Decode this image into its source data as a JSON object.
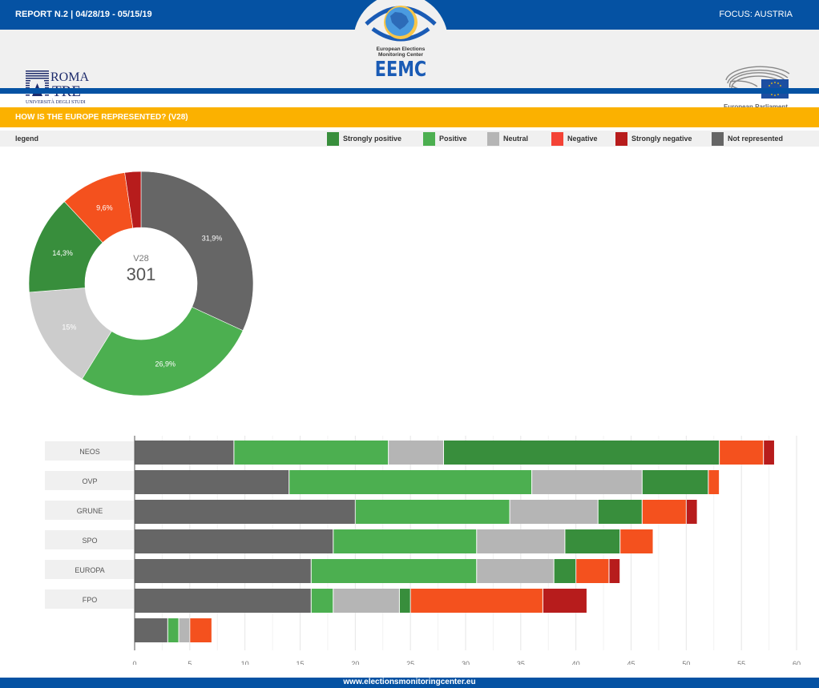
{
  "header": {
    "report": "REPORT N.2 | 04/28/19 - 05/15/19",
    "focus": "FOCUS: AUSTRIA",
    "logos": {
      "left": {
        "line1": "ROMA",
        "line2": "TRE",
        "line3": "UNIVERSITÀ DEGLI STUDI"
      },
      "center": {
        "line1": "European Elections",
        "line2": "Monitoring Center",
        "acronym": "EEMC"
      },
      "right": {
        "caption": "European Parliament"
      }
    }
  },
  "section": {
    "title": "HOW IS THE EUROPE REPRESENTED? (V28)"
  },
  "legend": {
    "title": "legend",
    "items": [
      {
        "label": "Strongly positive",
        "color": "#388e3c"
      },
      {
        "label": "Positive",
        "color": "#4caf50"
      },
      {
        "label": "Neutral",
        "color": "#b5b5b5"
      },
      {
        "label": "Negative",
        "color": "#f44336"
      },
      {
        "label": "Strongly negative",
        "color": "#b71c1c"
      },
      {
        "label": "Not represented",
        "color": "#666666"
      }
    ]
  },
  "chart_data": [
    {
      "type": "pie",
      "variant": "donut",
      "title": "V28",
      "center_label": "V28",
      "center_value": "301",
      "slices": [
        {
          "label": "Not represented",
          "value": 96,
          "percent_label": "31,9%",
          "color": "#666666"
        },
        {
          "label": "Positive",
          "value": 81,
          "percent_label": "26,9%",
          "color": "#4caf50"
        },
        {
          "label": "Neutral",
          "value": 45,
          "percent_label": "15%",
          "color": "#cccccc"
        },
        {
          "label": "Strongly positive",
          "value": 43,
          "percent_label": "14,3%",
          "color": "#388e3c"
        },
        {
          "label": "Negative",
          "value": 29,
          "percent_label": "9,6%",
          "color": "#f4511e"
        },
        {
          "label": "Strongly negative",
          "value": 7,
          "percent_label": "",
          "color": "#b71c1c"
        }
      ]
    },
    {
      "type": "bar",
      "orientation": "horizontal",
      "stacked": true,
      "categories": [
        "NEOS",
        "OVP",
        "GRUNE",
        "SPO",
        "EUROPA",
        "FPO",
        ""
      ],
      "series": [
        {
          "name": "Not represented",
          "color": "#666666",
          "values": [
            9,
            14,
            20,
            18,
            16,
            16,
            3
          ]
        },
        {
          "name": "Positive",
          "color": "#4caf50",
          "values": [
            14,
            22,
            14,
            13,
            15,
            2,
            1
          ]
        },
        {
          "name": "Neutral",
          "color": "#b5b5b5",
          "values": [
            5,
            10,
            8,
            8,
            7,
            6,
            1
          ]
        },
        {
          "name": "Strongly positive",
          "color": "#388e3c",
          "values": [
            25,
            6,
            4,
            5,
            2,
            1,
            0
          ]
        },
        {
          "name": "Negative",
          "color": "#f4511e",
          "values": [
            4,
            1,
            4,
            3,
            3,
            12,
            2
          ]
        },
        {
          "name": "Strongly negative",
          "color": "#b71c1c",
          "values": [
            1,
            0,
            1,
            0,
            1,
            4,
            0
          ]
        }
      ],
      "xlim": [
        0,
        60
      ],
      "xticks": [
        0,
        5,
        10,
        15,
        20,
        25,
        30,
        35,
        40,
        45,
        50,
        55,
        60
      ],
      "grid": true,
      "xlabel": "",
      "ylabel": ""
    }
  ],
  "footer": {
    "url": "www.electionsmonitoringcenter.eu"
  }
}
